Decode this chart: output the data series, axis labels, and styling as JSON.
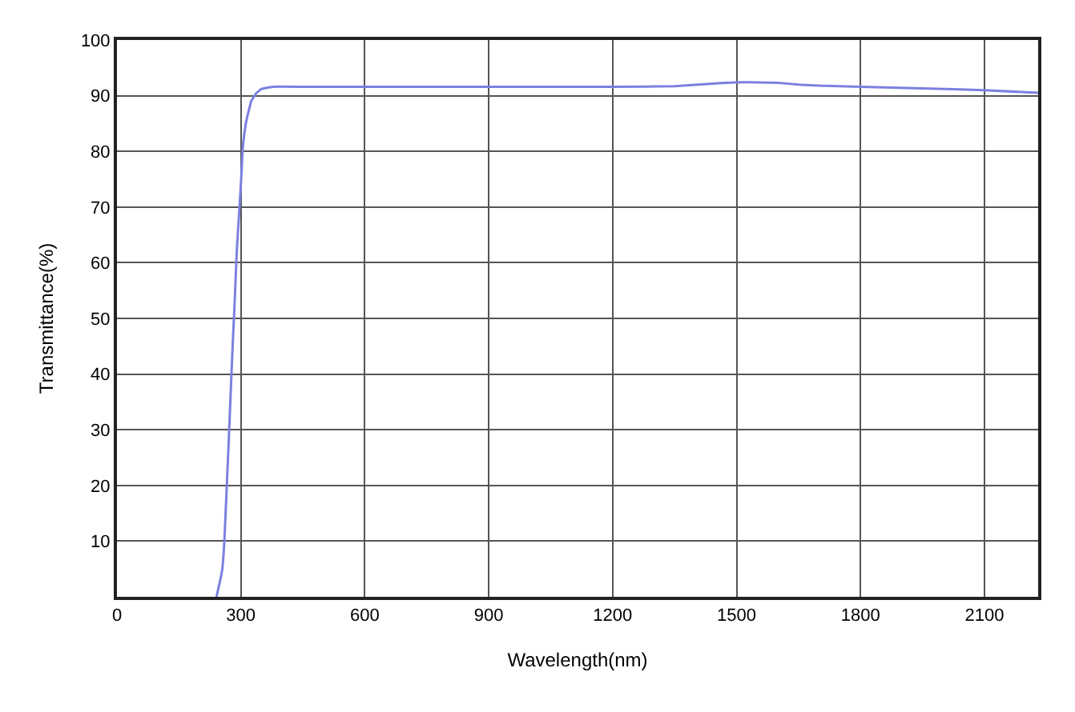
{
  "chart_data": {
    "type": "line",
    "xlabel": "Wavelength(nm)",
    "ylabel": "Transmittance(%)",
    "x": [
      241,
      250,
      255,
      260,
      270,
      280,
      285,
      290,
      300,
      305,
      312,
      318,
      325,
      338,
      350,
      376,
      450,
      600,
      900,
      1200,
      1350,
      1450,
      1500,
      1550,
      1600,
      1650,
      1700,
      1800,
      1950,
      2100,
      2230
    ],
    "series": [
      {
        "color": "#7b80e0",
        "values": [
          0,
          3,
          5,
          10,
          27,
          45,
          53,
          62,
          74,
          81,
          85,
          87,
          89,
          90.5,
          91.2,
          91.6,
          91.6,
          91.6,
          91.6,
          91.6,
          91.7,
          92.2,
          92.4,
          92.4,
          92.3,
          92,
          91.8,
          91.6,
          91.3,
          91,
          90.5
        ]
      }
    ],
    "xlim": [
      0,
      2230
    ],
    "ylim": [
      0,
      100
    ],
    "xticks": [
      0,
      300,
      600,
      900,
      1200,
      1500,
      1800,
      2100
    ],
    "yticks": [
      10,
      20,
      30,
      40,
      50,
      60,
      70,
      80,
      90,
      100
    ],
    "grid": true,
    "marker": "none",
    "line_style": "solid"
  }
}
